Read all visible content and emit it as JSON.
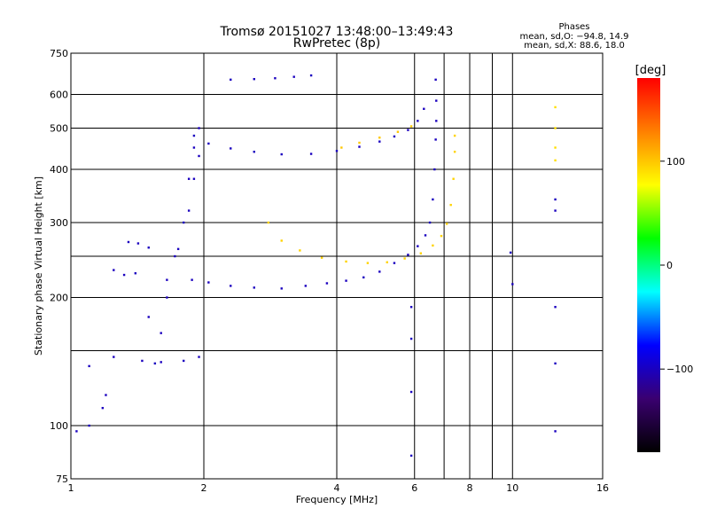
{
  "header": {
    "title": "Tromsø 20151027 13:48:00–13:49:43",
    "subtitle": "RwPretec (8p)",
    "phase_heading": "Phases",
    "phase_o": "mean, sd,O: −94.8, 14.9",
    "phase_x": "mean, sd,X:  88.6, 18.0"
  },
  "colorbar": {
    "unit": "[deg]",
    "ticks": [
      {
        "value": 100,
        "label": "100"
      },
      {
        "value": 0,
        "label": "0"
      },
      {
        "value": -100,
        "label": "−100"
      }
    ],
    "range": [
      -180,
      180
    ],
    "colormap": [
      "#000000",
      "#3a0070",
      "#0000ff",
      "#00ffff",
      "#00ff00",
      "#ffff00",
      "#ff8000",
      "#ff0000"
    ]
  },
  "chart_data": {
    "type": "scatter",
    "title": "Tromsø 20151027 13:48:00–13:49:43",
    "subtitle": "RwPretec (8p)",
    "xlabel": "Frequency [MHz]",
    "ylabel": "Stationary phase Virtual Height [km]",
    "xscale": "log",
    "yscale": "log",
    "xlim": [
      1,
      16
    ],
    "ylim": [
      75,
      750
    ],
    "grid": true,
    "xticks": [
      {
        "value": 1,
        "label": "1"
      },
      {
        "value": 2,
        "label": "2"
      },
      {
        "value": 4,
        "label": "4"
      },
      {
        "value": 6,
        "label": "6"
      },
      {
        "value": 8,
        "label": "8"
      },
      {
        "value": 10,
        "label": "10"
      },
      {
        "value": 16,
        "label": "16"
      }
    ],
    "xgrid": [
      2,
      4,
      6,
      7,
      8,
      9,
      10
    ],
    "yticks": [
      {
        "value": 75,
        "label": "75"
      },
      {
        "value": 100,
        "label": "100"
      },
      {
        "value": 200,
        "label": "200"
      },
      {
        "value": 300,
        "label": "300"
      },
      {
        "value": 400,
        "label": "400"
      },
      {
        "value": 500,
        "label": "500"
      },
      {
        "value": 600,
        "label": "600"
      },
      {
        "value": 750,
        "label": "750"
      }
    ],
    "ygrid": [
      100,
      150,
      200,
      250,
      300,
      400,
      500,
      600
    ],
    "color_variable": "phase [deg]",
    "series": [
      {
        "trace": "o_f2_lower",
        "phase": -100,
        "points": [
          [
            1.88,
            220
          ],
          [
            2.05,
            217
          ],
          [
            2.3,
            213
          ],
          [
            2.6,
            211
          ],
          [
            3.0,
            210
          ],
          [
            3.4,
            213
          ],
          [
            3.8,
            216
          ],
          [
            4.2,
            219
          ],
          [
            4.6,
            223
          ],
          [
            5.0,
            230
          ],
          [
            5.4,
            241
          ],
          [
            5.8,
            252
          ],
          [
            6.1,
            264
          ],
          [
            6.35,
            280
          ],
          [
            6.5,
            300
          ],
          [
            6.6,
            340
          ],
          [
            6.66,
            400
          ],
          [
            6.7,
            470
          ],
          [
            6.72,
            520
          ],
          [
            6.72,
            580
          ],
          [
            6.7,
            650
          ]
        ]
      },
      {
        "trace": "x_f2_lower",
        "phase": 95,
        "points": [
          [
            2.8,
            300
          ],
          [
            3.0,
            272
          ],
          [
            3.3,
            258
          ],
          [
            3.7,
            248
          ],
          [
            4.2,
            243
          ],
          [
            4.7,
            241
          ],
          [
            5.2,
            242
          ],
          [
            5.7,
            247
          ],
          [
            6.2,
            254
          ],
          [
            6.6,
            265
          ],
          [
            6.9,
            279
          ],
          [
            7.1,
            298
          ],
          [
            7.25,
            330
          ],
          [
            7.35,
            380
          ],
          [
            7.4,
            440
          ],
          [
            7.4,
            480
          ]
        ]
      },
      {
        "trace": "o_f2_upper",
        "phase": -100,
        "points": [
          [
            1.9,
            480
          ],
          [
            2.05,
            460
          ],
          [
            2.3,
            448
          ],
          [
            2.6,
            440
          ],
          [
            3.0,
            434
          ],
          [
            3.5,
            435
          ],
          [
            4.0,
            442
          ],
          [
            4.5,
            452
          ],
          [
            5.0,
            465
          ],
          [
            5.4,
            478
          ],
          [
            5.8,
            495
          ],
          [
            6.1,
            520
          ],
          [
            6.3,
            555
          ]
        ]
      },
      {
        "trace": "x_f2_upper",
        "phase": 100,
        "points": [
          [
            4.1,
            450
          ],
          [
            4.5,
            462
          ],
          [
            5.0,
            475
          ],
          [
            5.5,
            490
          ],
          [
            5.9,
            505
          ]
        ]
      },
      {
        "trace": "f1_cusp",
        "phase": -100,
        "points": [
          [
            1.55,
            140
          ],
          [
            1.6,
            165
          ],
          [
            1.65,
            200
          ],
          [
            1.72,
            250
          ],
          [
            1.8,
            300
          ],
          [
            1.85,
            380
          ],
          [
            1.9,
            450
          ],
          [
            1.95,
            500
          ]
        ]
      },
      {
        "trace": "e_region",
        "phase": -100,
        "points": [
          [
            1.03,
            97
          ],
          [
            1.1,
            100
          ],
          [
            1.18,
            110
          ],
          [
            1.2,
            118
          ],
          [
            1.1,
            138
          ],
          [
            1.25,
            145
          ],
          [
            1.45,
            142
          ],
          [
            1.6,
            141
          ],
          [
            1.8,
            142
          ],
          [
            1.95,
            145
          ]
        ]
      },
      {
        "trace": "spread_f_region",
        "phase": -100,
        "points": [
          [
            1.5,
            180
          ],
          [
            1.65,
            220
          ],
          [
            1.75,
            260
          ],
          [
            1.85,
            320
          ],
          [
            1.9,
            380
          ],
          [
            1.95,
            430
          ]
        ]
      },
      {
        "trace": "top_arc",
        "phase": -100,
        "points": [
          [
            2.3,
            650
          ],
          [
            2.6,
            652
          ],
          [
            2.9,
            655
          ],
          [
            3.2,
            660
          ],
          [
            3.5,
            665
          ]
        ]
      },
      {
        "trace": "sporadic_low",
        "phase": -100,
        "points": [
          [
            1.25,
            232
          ],
          [
            1.32,
            226
          ],
          [
            1.4,
            228
          ],
          [
            1.35,
            270
          ],
          [
            1.42,
            268
          ],
          [
            1.5,
            262
          ]
        ]
      },
      {
        "trace": "right_column",
        "phase": 90,
        "points": [
          [
            12.5,
            560
          ],
          [
            12.5,
            500
          ],
          [
            12.5,
            450
          ],
          [
            12.5,
            420
          ]
        ]
      },
      {
        "trace": "right_column_blue",
        "phase": -100,
        "points": [
          [
            12.5,
            340
          ],
          [
            12.5,
            320
          ],
          [
            12.5,
            190
          ],
          [
            12.5,
            140
          ],
          [
            12.5,
            97
          ],
          [
            10.0,
            215
          ],
          [
            9.9,
            255
          ],
          [
            5.9,
            190
          ],
          [
            5.9,
            160
          ],
          [
            5.9,
            120
          ],
          [
            5.9,
            85
          ]
        ]
      }
    ]
  }
}
